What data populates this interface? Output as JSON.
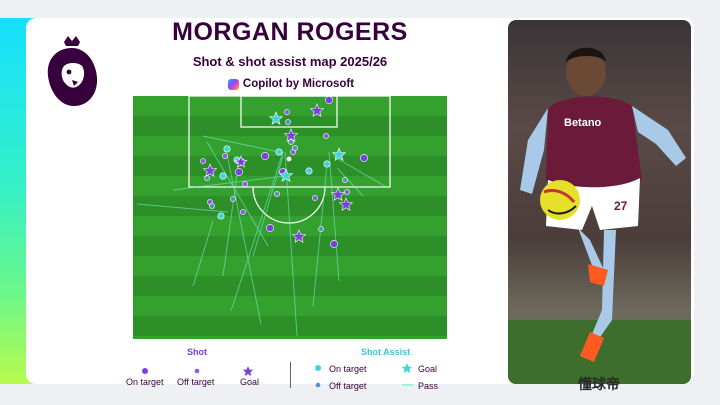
{
  "header": {
    "player_name": "MORGAN ROGERS",
    "subtitle": "Shot & shot assist map 2025/26",
    "sponsor": "Copilot by Microsoft"
  },
  "colors": {
    "pitch_green": "#34a02e",
    "shot_purple": "#7b3fe0",
    "assist_cyan": "#3fd5d8",
    "brand_purple": "#37003c"
  },
  "legend": {
    "shot_title": "Shot",
    "assist_title": "Shot Assist",
    "shot_items": [
      "On target",
      "Off target",
      "Goal"
    ],
    "assist_items": [
      "On target",
      "Goal",
      "Off target",
      "Pass"
    ]
  },
  "icons": [
    "premier-league-lion-icon",
    "copilot-icon"
  ],
  "watermark": "懂球帝"
}
